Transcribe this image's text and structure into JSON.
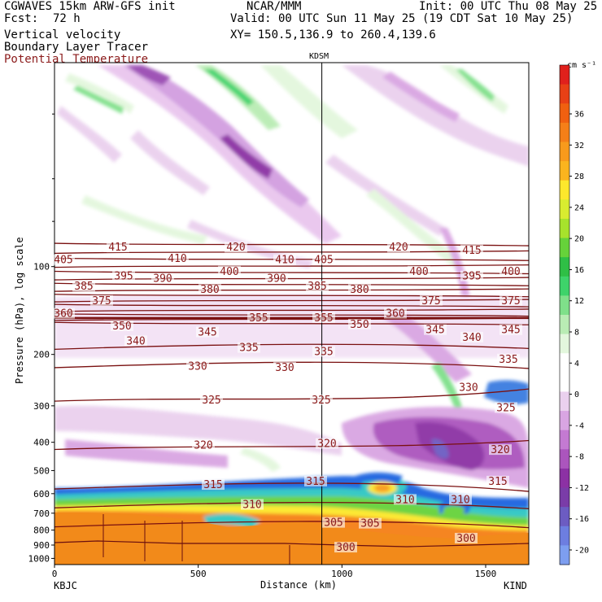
{
  "header": {
    "left_line1": "CGWAVES 15km ARW-GFS init",
    "left_line2_label": "Fcst:",
    "left_line2_value": "72 h",
    "field1": "Vertical velocity",
    "field2": "Boundary Layer Tracer",
    "field3": "Potential Temperature",
    "center_line1": "NCAR/MMM",
    "center_valid": "Valid: 00 UTC Sun 11 May 25 (19 CDT Sat 10 May 25)",
    "center_xy": "XY= 150.5,136.9 to 260.4,139.6",
    "init": "Init: 00 UTC Thu 08 May 25",
    "station_marker": "KDSM",
    "left_endpoint": "KBJC",
    "right_endpoint": "KIND",
    "colors": {
      "theta_label": "#8b1a1a",
      "theta_line": "#7a1010"
    }
  },
  "chart_data": {
    "type": "heatmap",
    "xlabel": "Distance (km)",
    "ylabel": "Pressure (hPa), log scale",
    "x_ticks": [
      0,
      500,
      1000,
      1500
    ],
    "xlim": [
      0,
      1650
    ],
    "y_ticks": [
      100,
      200,
      300,
      400,
      500,
      600,
      700,
      800,
      900,
      1000
    ],
    "ylim": [
      1050,
      20
    ],
    "y_scale": "log",
    "station_x": 930,
    "colorbar": {
      "units": "cm s⁻¹",
      "labels": [
        36,
        32,
        28,
        24,
        20,
        16,
        12,
        8,
        4,
        0,
        -4,
        -8,
        -12,
        -16,
        -20
      ],
      "colors": [
        "#e0201c",
        "#e84016",
        "#f06010",
        "#f57f18",
        "#f89a1c",
        "#fbb41e",
        "#fde82c",
        "#d8ec30",
        "#a7e22c",
        "#66d23a",
        "#2fbf46",
        "#3ed36a",
        "#7fe08a",
        "#b9ecb4",
        "#e3f7dd",
        "#ffffff",
        "#ffffff",
        "#ead0ee",
        "#d9a5e2",
        "#c47ad2",
        "#ab55bd",
        "#8c31a4",
        "#7a3ca8",
        "#6c5cc2",
        "#6d7ee0",
        "#7d9ef0"
      ]
    },
    "theta_labels": [
      {
        "v": "415",
        "x": 145,
        "p": 86
      },
      {
        "v": "420",
        "x": 290,
        "p": 86
      },
      {
        "v": "420",
        "x": 490,
        "p": 86
      },
      {
        "v": "415",
        "x": 580,
        "p": 88
      },
      {
        "v": "405",
        "x": 78,
        "p": 95
      },
      {
        "v": "410",
        "x": 218,
        "p": 94
      },
      {
        "v": "410",
        "x": 350,
        "p": 95
      },
      {
        "v": "405",
        "x": 398,
        "p": 95
      },
      {
        "v": "400",
        "x": 515,
        "p": 104
      },
      {
        "v": "395",
        "x": 580,
        "p": 108
      },
      {
        "v": "400",
        "x": 628,
        "p": 104
      },
      {
        "v": "395",
        "x": 152,
        "p": 108
      },
      {
        "v": "390",
        "x": 200,
        "p": 110
      },
      {
        "v": "400",
        "x": 282,
        "p": 104
      },
      {
        "v": "390",
        "x": 340,
        "p": 110
      },
      {
        "v": "385",
        "x": 103,
        "p": 117
      },
      {
        "v": "380",
        "x": 258,
        "p": 120
      },
      {
        "v": "385",
        "x": 390,
        "p": 117
      },
      {
        "v": "380",
        "x": 442,
        "p": 120
      },
      {
        "v": "375",
        "x": 125,
        "p": 131
      },
      {
        "v": "375",
        "x": 530,
        "p": 131
      },
      {
        "v": "375",
        "x": 628,
        "p": 131
      },
      {
        "v": "360",
        "x": 78,
        "p": 145
      },
      {
        "v": "355",
        "x": 318,
        "p": 150
      },
      {
        "v": "355",
        "x": 398,
        "p": 150
      },
      {
        "v": "360",
        "x": 486,
        "p": 145
      },
      {
        "v": "350",
        "x": 150,
        "p": 160
      },
      {
        "v": "350",
        "x": 442,
        "p": 158
      },
      {
        "v": "345",
        "x": 255,
        "p": 168
      },
      {
        "v": "345",
        "x": 535,
        "p": 165
      },
      {
        "v": "345",
        "x": 628,
        "p": 165
      },
      {
        "v": "340",
        "x": 167,
        "p": 180
      },
      {
        "v": "340",
        "x": 580,
        "p": 175
      },
      {
        "v": "335",
        "x": 306,
        "p": 190
      },
      {
        "v": "335",
        "x": 398,
        "p": 196
      },
      {
        "v": "335",
        "x": 625,
        "p": 208
      },
      {
        "v": "330",
        "x": 243,
        "p": 220
      },
      {
        "v": "330",
        "x": 350,
        "p": 222
      },
      {
        "v": "330",
        "x": 576,
        "p": 260
      },
      {
        "v": "325",
        "x": 260,
        "p": 287
      },
      {
        "v": "325",
        "x": 395,
        "p": 287
      },
      {
        "v": "325",
        "x": 622,
        "p": 305
      },
      {
        "v": "320",
        "x": 250,
        "p": 410
      },
      {
        "v": "320",
        "x": 402,
        "p": 405
      },
      {
        "v": "320",
        "x": 615,
        "p": 425
      },
      {
        "v": "315",
        "x": 262,
        "p": 560
      },
      {
        "v": "315",
        "x": 388,
        "p": 545
      },
      {
        "v": "315",
        "x": 612,
        "p": 545
      },
      {
        "v": "310",
        "x": 310,
        "p": 655
      },
      {
        "v": "310",
        "x": 498,
        "p": 630
      },
      {
        "v": "310",
        "x": 566,
        "p": 630
      },
      {
        "v": "305",
        "x": 410,
        "p": 755
      },
      {
        "v": "305",
        "x": 455,
        "p": 760
      },
      {
        "v": "300",
        "x": 425,
        "p": 918
      },
      {
        "v": "300",
        "x": 573,
        "p": 855
      }
    ]
  }
}
